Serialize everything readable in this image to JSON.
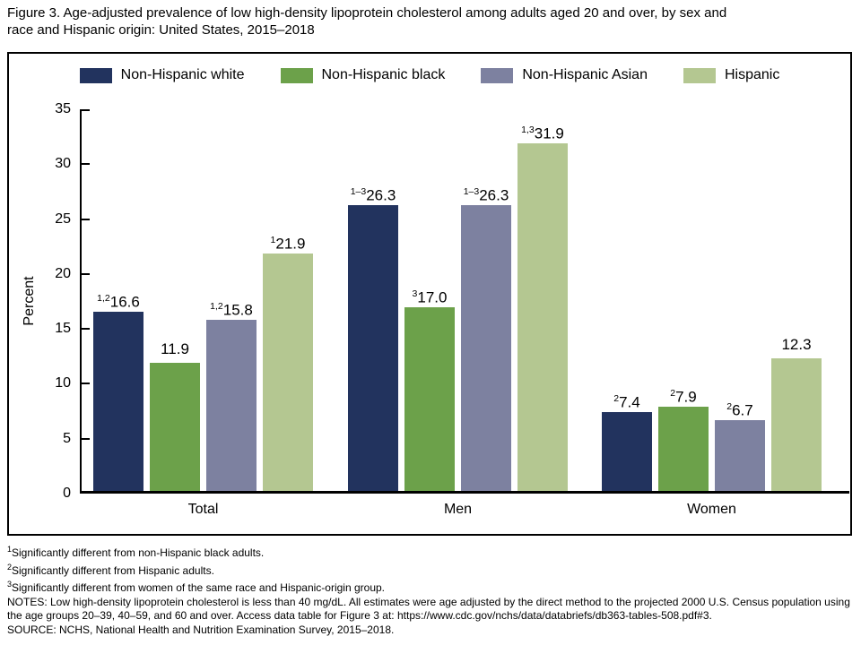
{
  "figure": {
    "title_lines": [
      "Figure 3. Age-adjusted prevalence of low high-density lipoprotein cholesterol among adults aged 20 and over, by sex and",
      "race and Hispanic origin: United States, 2015–2018"
    ]
  },
  "chart_data": {
    "type": "bar",
    "title": "Age-adjusted prevalence of low high-density lipoprotein cholesterol among adults aged 20 and over, by sex and race and Hispanic origin: United States, 2015–2018",
    "xlabel": "",
    "ylabel": "Percent",
    "ylim": [
      0,
      35
    ],
    "yticks": [
      0,
      5,
      10,
      15,
      20,
      25,
      30,
      35
    ],
    "grid": false,
    "legend_position": "top",
    "categories": [
      "Total",
      "Men",
      "Women"
    ],
    "series": [
      {
        "name": "Non-Hispanic white",
        "color": "#22335E",
        "values": [
          16.6,
          26.3,
          7.4
        ],
        "label_superscripts": [
          "1,2",
          "1–3",
          "2"
        ]
      },
      {
        "name": "Non-Hispanic black",
        "color": "#6CA14A",
        "values": [
          11.9,
          17.0,
          7.9
        ],
        "label_superscripts": [
          "",
          "3",
          "2"
        ]
      },
      {
        "name": "Non-Hispanic Asian",
        "color": "#7D81A0",
        "values": [
          15.8,
          26.3,
          6.7
        ],
        "label_superscripts": [
          "1,2",
          "1–3",
          "2"
        ]
      },
      {
        "name": "Hispanic",
        "color": "#B4C791",
        "values": [
          21.9,
          31.9,
          12.3
        ],
        "label_superscripts": [
          "1",
          "1,3",
          ""
        ]
      }
    ]
  },
  "footnotes": [
    {
      "sup": "1",
      "text": "Significantly different from non-Hispanic black adults."
    },
    {
      "sup": "2",
      "text": "Significantly different from Hispanic adults."
    },
    {
      "sup": "3",
      "text": "Significantly different from women of the same race and Hispanic-origin group."
    }
  ],
  "notes": "NOTES: Low high-density lipoprotein cholesterol is less than 40 mg/dL. All estimates were age adjusted by the direct method to the projected 2000 U.S. Census population using the age groups 20–39, 40–59, and 60 and over. Access data table for Figure 3 at: https://www.cdc.gov/nchs/data/databriefs/db363-tables-508.pdf#3.",
  "source": "SOURCE: NCHS, National Health and Nutrition Examination Survey, 2015–2018."
}
